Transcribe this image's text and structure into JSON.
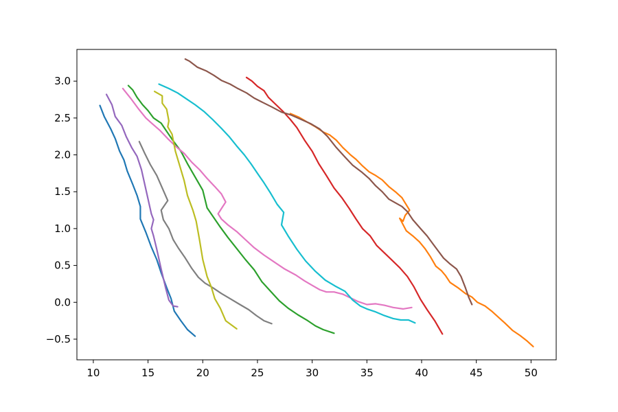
{
  "chart_data": {
    "type": "line",
    "title": "",
    "xlabel": "",
    "ylabel": "",
    "xlim": [
      8.5,
      52.3
    ],
    "ylim": [
      -0.78,
      3.43
    ],
    "xticks": [
      10,
      15,
      20,
      25,
      30,
      35,
      40,
      45,
      50
    ],
    "yticks": [
      -0.5,
      0.0,
      0.5,
      1.0,
      1.5,
      2.0,
      2.5,
      3.0
    ],
    "ytick_labels": [
      "−0.5",
      "0.0",
      "0.5",
      "1.0",
      "1.5",
      "2.0",
      "2.5",
      "3.0"
    ],
    "grid": false,
    "legend": false,
    "series": [
      {
        "color": "#1f77b4",
        "points": [
          [
            10.6,
            2.67
          ],
          [
            11.0,
            2.52
          ],
          [
            11.6,
            2.35
          ],
          [
            12.0,
            2.22
          ],
          [
            12.4,
            2.05
          ],
          [
            12.8,
            1.93
          ],
          [
            13.1,
            1.78
          ],
          [
            13.6,
            1.6
          ],
          [
            14.0,
            1.45
          ],
          [
            14.3,
            1.3
          ],
          [
            14.3,
            1.13
          ],
          [
            14.8,
            0.95
          ],
          [
            15.3,
            0.75
          ],
          [
            15.8,
            0.58
          ],
          [
            16.2,
            0.4
          ],
          [
            16.7,
            0.2
          ],
          [
            17.1,
            0.05
          ],
          [
            17.4,
            -0.12
          ],
          [
            18.0,
            -0.25
          ],
          [
            18.6,
            -0.37
          ],
          [
            19.3,
            -0.46
          ]
        ]
      },
      {
        "color": "#ff7f0e",
        "points": [
          [
            28.0,
            2.56
          ],
          [
            28.8,
            2.51
          ],
          [
            29.6,
            2.44
          ],
          [
            30.3,
            2.38
          ],
          [
            31.0,
            2.31
          ],
          [
            31.6,
            2.27
          ],
          [
            32.2,
            2.2
          ],
          [
            32.8,
            2.1
          ],
          [
            33.5,
            2.0
          ],
          [
            34.0,
            1.94
          ],
          [
            34.6,
            1.85
          ],
          [
            35.2,
            1.77
          ],
          [
            35.8,
            1.72
          ],
          [
            36.4,
            1.66
          ],
          [
            37.0,
            1.57
          ],
          [
            37.6,
            1.5
          ],
          [
            38.2,
            1.42
          ],
          [
            38.9,
            1.25
          ],
          [
            38.5,
            1.18
          ],
          [
            38.3,
            1.1
          ],
          [
            38.0,
            1.14
          ],
          [
            38.6,
            0.97
          ],
          [
            39.2,
            0.9
          ],
          [
            39.8,
            0.82
          ],
          [
            40.3,
            0.73
          ],
          [
            40.8,
            0.62
          ],
          [
            41.3,
            0.49
          ],
          [
            41.8,
            0.43
          ],
          [
            42.2,
            0.36
          ],
          [
            42.6,
            0.27
          ],
          [
            43.3,
            0.2
          ],
          [
            44.0,
            0.12
          ],
          [
            44.6,
            0.07
          ],
          [
            45.1,
            0.0
          ],
          [
            45.8,
            -0.05
          ],
          [
            46.4,
            -0.12
          ],
          [
            47.0,
            -0.2
          ],
          [
            47.6,
            -0.28
          ],
          [
            48.3,
            -0.38
          ],
          [
            49.0,
            -0.45
          ],
          [
            49.6,
            -0.52
          ],
          [
            50.2,
            -0.6
          ]
        ]
      },
      {
        "color": "#2ca02c",
        "points": [
          [
            13.2,
            2.94
          ],
          [
            13.6,
            2.88
          ],
          [
            14.0,
            2.78
          ],
          [
            14.5,
            2.68
          ],
          [
            15.0,
            2.6
          ],
          [
            15.5,
            2.5
          ],
          [
            16.2,
            2.43
          ],
          [
            16.7,
            2.32
          ],
          [
            17.3,
            2.19
          ],
          [
            18.0,
            2.05
          ],
          [
            18.6,
            1.88
          ],
          [
            19.3,
            1.7
          ],
          [
            20.0,
            1.52
          ],
          [
            20.4,
            1.28
          ],
          [
            21.0,
            1.15
          ],
          [
            21.6,
            1.02
          ],
          [
            22.3,
            0.88
          ],
          [
            23.1,
            0.73
          ],
          [
            23.9,
            0.58
          ],
          [
            24.7,
            0.44
          ],
          [
            25.4,
            0.28
          ],
          [
            26.2,
            0.15
          ],
          [
            27.0,
            0.02
          ],
          [
            27.8,
            -0.08
          ],
          [
            28.7,
            -0.17
          ],
          [
            29.6,
            -0.25
          ],
          [
            30.3,
            -0.32
          ],
          [
            31.0,
            -0.37
          ],
          [
            32.0,
            -0.42
          ]
        ]
      },
      {
        "color": "#d62728",
        "points": [
          [
            24.0,
            3.05
          ],
          [
            24.5,
            3.0
          ],
          [
            25.0,
            2.93
          ],
          [
            25.6,
            2.87
          ],
          [
            26.0,
            2.78
          ],
          [
            26.7,
            2.68
          ],
          [
            27.4,
            2.58
          ],
          [
            28.0,
            2.48
          ],
          [
            28.6,
            2.37
          ],
          [
            29.3,
            2.2
          ],
          [
            30.0,
            2.05
          ],
          [
            30.6,
            1.88
          ],
          [
            31.3,
            1.72
          ],
          [
            32.0,
            1.55
          ],
          [
            32.7,
            1.42
          ],
          [
            33.4,
            1.27
          ],
          [
            34.0,
            1.13
          ],
          [
            34.6,
            1.0
          ],
          [
            35.3,
            0.9
          ],
          [
            35.9,
            0.77
          ],
          [
            36.6,
            0.67
          ],
          [
            37.3,
            0.57
          ],
          [
            38.0,
            0.47
          ],
          [
            38.7,
            0.35
          ],
          [
            39.3,
            0.21
          ],
          [
            39.9,
            0.04
          ],
          [
            40.5,
            -0.1
          ],
          [
            41.2,
            -0.25
          ],
          [
            41.9,
            -0.43
          ]
        ]
      },
      {
        "color": "#9467bd",
        "points": [
          [
            11.2,
            2.82
          ],
          [
            11.7,
            2.68
          ],
          [
            12.0,
            2.52
          ],
          [
            12.6,
            2.4
          ],
          [
            13.0,
            2.25
          ],
          [
            13.5,
            2.1
          ],
          [
            14.0,
            1.98
          ],
          [
            14.4,
            1.8
          ],
          [
            14.7,
            1.6
          ],
          [
            15.0,
            1.4
          ],
          [
            15.3,
            1.2
          ],
          [
            15.5,
            1.12
          ],
          [
            15.3,
            1.0
          ],
          [
            15.5,
            0.9
          ],
          [
            15.8,
            0.72
          ],
          [
            16.2,
            0.45
          ],
          [
            16.6,
            0.2
          ],
          [
            16.9,
            0.03
          ],
          [
            17.3,
            -0.05
          ],
          [
            17.7,
            -0.06
          ]
        ]
      },
      {
        "color": "#8c564b",
        "points": [
          [
            18.4,
            3.3
          ],
          [
            18.8,
            3.27
          ],
          [
            19.5,
            3.19
          ],
          [
            20.3,
            3.14
          ],
          [
            21.0,
            3.08
          ],
          [
            21.7,
            3.01
          ],
          [
            22.5,
            2.96
          ],
          [
            23.2,
            2.9
          ],
          [
            24.0,
            2.84
          ],
          [
            24.7,
            2.77
          ],
          [
            25.5,
            2.71
          ],
          [
            26.3,
            2.65
          ],
          [
            27.2,
            2.58
          ],
          [
            28.1,
            2.54
          ],
          [
            29.0,
            2.48
          ],
          [
            29.9,
            2.42
          ],
          [
            30.7,
            2.35
          ],
          [
            31.4,
            2.25
          ],
          [
            32.2,
            2.1
          ],
          [
            33.0,
            1.97
          ],
          [
            33.7,
            1.86
          ],
          [
            34.5,
            1.77
          ],
          [
            35.2,
            1.68
          ],
          [
            35.8,
            1.58
          ],
          [
            36.4,
            1.5
          ],
          [
            37.0,
            1.4
          ],
          [
            37.6,
            1.35
          ],
          [
            38.2,
            1.3
          ],
          [
            38.7,
            1.23
          ],
          [
            39.2,
            1.12
          ],
          [
            39.9,
            1.0
          ],
          [
            40.5,
            0.9
          ],
          [
            41.0,
            0.8
          ],
          [
            41.5,
            0.7
          ],
          [
            42.0,
            0.6
          ],
          [
            42.6,
            0.52
          ],
          [
            43.2,
            0.45
          ],
          [
            43.6,
            0.35
          ],
          [
            44.0,
            0.2
          ],
          [
            44.3,
            0.07
          ],
          [
            44.6,
            -0.03
          ]
        ]
      },
      {
        "color": "#e377c2",
        "points": [
          [
            12.7,
            2.9
          ],
          [
            13.4,
            2.77
          ],
          [
            14.1,
            2.63
          ],
          [
            14.8,
            2.5
          ],
          [
            15.4,
            2.42
          ],
          [
            16.1,
            2.33
          ],
          [
            16.8,
            2.22
          ],
          [
            17.5,
            2.12
          ],
          [
            18.3,
            2.02
          ],
          [
            19.0,
            1.9
          ],
          [
            19.7,
            1.8
          ],
          [
            20.4,
            1.68
          ],
          [
            21.1,
            1.57
          ],
          [
            21.7,
            1.47
          ],
          [
            22.1,
            1.36
          ],
          [
            21.7,
            1.27
          ],
          [
            21.4,
            1.2
          ],
          [
            21.7,
            1.13
          ],
          [
            22.3,
            1.05
          ],
          [
            23.1,
            0.96
          ],
          [
            23.9,
            0.85
          ],
          [
            24.7,
            0.74
          ],
          [
            25.6,
            0.64
          ],
          [
            26.5,
            0.55
          ],
          [
            27.5,
            0.45
          ],
          [
            28.5,
            0.37
          ],
          [
            29.3,
            0.29
          ],
          [
            30.0,
            0.23
          ],
          [
            30.7,
            0.17
          ],
          [
            31.3,
            0.14
          ],
          [
            32.0,
            0.14
          ],
          [
            32.8,
            0.11
          ],
          [
            33.5,
            0.06
          ],
          [
            34.2,
            0.01
          ],
          [
            35.0,
            -0.03
          ],
          [
            35.8,
            -0.02
          ],
          [
            36.6,
            -0.04
          ],
          [
            37.4,
            -0.07
          ],
          [
            38.3,
            -0.09
          ],
          [
            39.1,
            -0.07
          ]
        ]
      },
      {
        "color": "#7f7f7f",
        "points": [
          [
            14.2,
            2.18
          ],
          [
            14.7,
            2.02
          ],
          [
            15.2,
            1.87
          ],
          [
            15.8,
            1.72
          ],
          [
            16.3,
            1.55
          ],
          [
            16.8,
            1.38
          ],
          [
            16.2,
            1.25
          ],
          [
            16.4,
            1.12
          ],
          [
            16.9,
            1.0
          ],
          [
            17.3,
            0.85
          ],
          [
            17.8,
            0.73
          ],
          [
            18.4,
            0.6
          ],
          [
            19.0,
            0.46
          ],
          [
            19.6,
            0.34
          ],
          [
            20.2,
            0.26
          ],
          [
            20.9,
            0.2
          ],
          [
            21.7,
            0.12
          ],
          [
            22.5,
            0.05
          ],
          [
            23.4,
            -0.03
          ],
          [
            24.2,
            -0.1
          ],
          [
            24.9,
            -0.18
          ],
          [
            25.6,
            -0.25
          ],
          [
            26.3,
            -0.29
          ]
        ]
      },
      {
        "color": "#bcbd22",
        "points": [
          [
            15.6,
            2.86
          ],
          [
            16.3,
            2.8
          ],
          [
            16.3,
            2.7
          ],
          [
            16.7,
            2.62
          ],
          [
            16.9,
            2.46
          ],
          [
            16.8,
            2.38
          ],
          [
            17.2,
            2.28
          ],
          [
            17.5,
            2.05
          ],
          [
            17.9,
            1.85
          ],
          [
            18.3,
            1.65
          ],
          [
            18.6,
            1.45
          ],
          [
            19.1,
            1.25
          ],
          [
            19.4,
            1.1
          ],
          [
            19.7,
            0.85
          ],
          [
            20.0,
            0.58
          ],
          [
            20.4,
            0.35
          ],
          [
            20.8,
            0.2
          ],
          [
            21.1,
            0.05
          ],
          [
            21.6,
            -0.08
          ],
          [
            22.1,
            -0.25
          ],
          [
            23.1,
            -0.36
          ]
        ]
      },
      {
        "color": "#17becf",
        "points": [
          [
            16.0,
            2.96
          ],
          [
            16.9,
            2.9
          ],
          [
            17.7,
            2.84
          ],
          [
            18.5,
            2.76
          ],
          [
            19.3,
            2.68
          ],
          [
            20.1,
            2.59
          ],
          [
            20.9,
            2.48
          ],
          [
            21.7,
            2.36
          ],
          [
            22.4,
            2.25
          ],
          [
            23.1,
            2.12
          ],
          [
            23.8,
            2.0
          ],
          [
            24.4,
            1.88
          ],
          [
            25.0,
            1.75
          ],
          [
            25.6,
            1.62
          ],
          [
            26.2,
            1.48
          ],
          [
            26.8,
            1.33
          ],
          [
            27.4,
            1.22
          ],
          [
            27.2,
            1.05
          ],
          [
            27.8,
            0.9
          ],
          [
            28.6,
            0.72
          ],
          [
            29.4,
            0.56
          ],
          [
            30.3,
            0.42
          ],
          [
            31.2,
            0.3
          ],
          [
            32.1,
            0.22
          ],
          [
            33.0,
            0.15
          ],
          [
            33.7,
            0.03
          ],
          [
            34.4,
            -0.05
          ],
          [
            35.0,
            -0.09
          ],
          [
            35.8,
            -0.13
          ],
          [
            36.6,
            -0.18
          ],
          [
            37.4,
            -0.22
          ],
          [
            38.1,
            -0.24
          ],
          [
            38.8,
            -0.24
          ],
          [
            39.4,
            -0.28
          ]
        ]
      }
    ]
  }
}
